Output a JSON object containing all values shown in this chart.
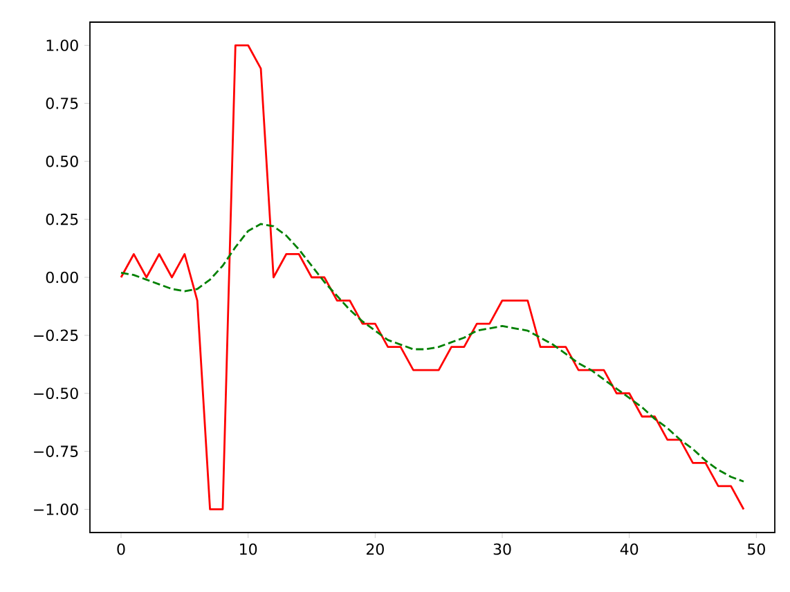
{
  "chart_data": {
    "type": "line",
    "x": [
      0,
      1,
      2,
      3,
      4,
      5,
      6,
      7,
      8,
      9,
      10,
      11,
      12,
      13,
      14,
      15,
      16,
      17,
      18,
      19,
      20,
      21,
      22,
      23,
      24,
      25,
      26,
      27,
      28,
      29,
      30,
      31,
      32,
      33,
      34,
      35,
      36,
      37,
      38,
      39,
      40,
      41,
      42,
      43,
      44,
      45,
      46,
      47,
      48,
      49
    ],
    "series": [
      {
        "color": "#ff0000",
        "line_style": "solid",
        "values": [
          0,
          0.1,
          0,
          0.1,
          0,
          0.1,
          -0.1,
          -1,
          -1,
          1,
          1,
          0.9,
          0,
          0.1,
          0.1,
          0,
          0,
          -0.1,
          -0.1,
          -0.2,
          -0.2,
          -0.3,
          -0.3,
          -0.4,
          -0.4,
          -0.4,
          -0.3,
          -0.3,
          -0.2,
          -0.2,
          -0.1,
          -0.1,
          -0.1,
          -0.3,
          -0.3,
          -0.3,
          -0.4,
          -0.4,
          -0.4,
          -0.5,
          -0.5,
          -0.6,
          -0.6,
          -0.7,
          -0.7,
          -0.8,
          -0.8,
          -0.9,
          -0.9,
          -1
        ]
      },
      {
        "color": "#008000",
        "line_style": "dashed",
        "values": [
          0.02,
          0.01,
          -0.01,
          -0.03,
          -0.05,
          -0.06,
          -0.05,
          -0.01,
          0.05,
          0.13,
          0.2,
          0.23,
          0.22,
          0.18,
          0.12,
          0.05,
          -0.02,
          -0.08,
          -0.14,
          -0.19,
          -0.23,
          -0.27,
          -0.29,
          -0.31,
          -0.31,
          -0.3,
          -0.28,
          -0.26,
          -0.23,
          -0.22,
          -0.21,
          -0.22,
          -0.23,
          -0.26,
          -0.29,
          -0.33,
          -0.37,
          -0.4,
          -0.44,
          -0.48,
          -0.52,
          -0.56,
          -0.61,
          -0.65,
          -0.7,
          -0.74,
          -0.79,
          -0.83,
          -0.86,
          -0.88
        ]
      }
    ],
    "xlim": [
      -2.45,
      51.45
    ],
    "ylim": [
      -1.1,
      1.1
    ],
    "xticks": [
      0,
      10,
      20,
      30,
      40,
      50
    ],
    "yticks": [
      {
        "value": -1,
        "label": "−1.00"
      },
      {
        "value": -0.75,
        "label": "−0.75"
      },
      {
        "value": -0.5,
        "label": "−0.50"
      },
      {
        "value": -0.25,
        "label": "−0.25"
      },
      {
        "value": 0,
        "label": "0.00"
      },
      {
        "value": 0.25,
        "label": "0.25"
      },
      {
        "value": 0.5,
        "label": "0.50"
      },
      {
        "value": 0.75,
        "label": "0.75"
      },
      {
        "value": 1,
        "label": "1.00"
      }
    ],
    "grid": false,
    "marker": "none"
  }
}
